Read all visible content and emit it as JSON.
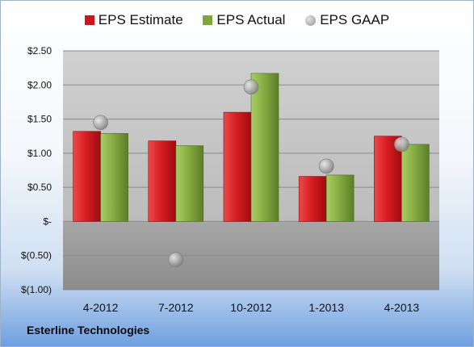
{
  "legend": {
    "estimate": "EPS Estimate",
    "actual": "EPS Actual",
    "gaap": "EPS GAAP"
  },
  "company": "Esterline Technologies",
  "colors": {
    "estimate": "#c9181c",
    "actual": "#7fa63c",
    "gaap": "#9a9a9a"
  },
  "chart_data": {
    "type": "bar",
    "categories": [
      "4-2012",
      "7-2012",
      "10-2012",
      "1-2013",
      "4-2013"
    ],
    "series": [
      {
        "name": "EPS Estimate",
        "values": [
          1.32,
          1.18,
          1.6,
          0.66,
          1.25
        ]
      },
      {
        "name": "EPS Actual",
        "values": [
          1.29,
          1.11,
          2.17,
          0.68,
          1.13
        ]
      },
      {
        "name": "EPS GAAP",
        "type": "scatter",
        "values": [
          1.45,
          -0.56,
          1.97,
          0.81,
          1.13
        ]
      }
    ],
    "ylim": [
      -1.0,
      2.5
    ],
    "yticks": [
      2.5,
      2.0,
      1.5,
      1.0,
      0.5,
      0,
      -0.5,
      -1.0
    ],
    "ytick_labels": [
      "$2.50",
      "$2.00",
      "$1.50",
      "$1.00",
      "$0.50",
      "$-",
      "$(0.50)",
      "$(1.00)"
    ],
    "grid": true,
    "legend_position": "top"
  }
}
